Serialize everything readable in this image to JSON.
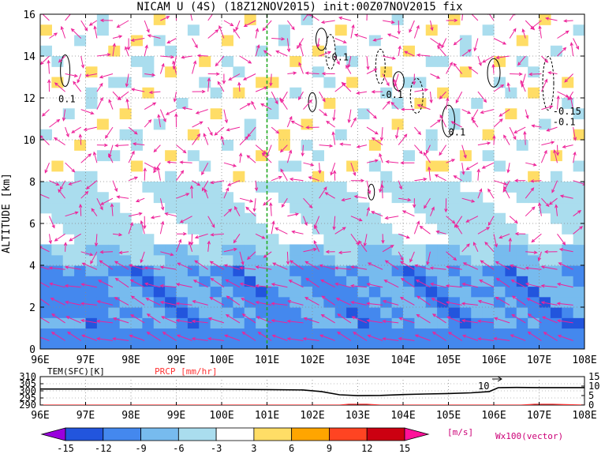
{
  "title": "NICAM U (4S) (18Z12NOV2015) init:00Z07NOV2015 fix",
  "chart_data": [
    {
      "type": "heatmap",
      "ylabel": "ALTITUDE [km]",
      "xticks": [
        "96E",
        "97E",
        "98E",
        "99E",
        "100E",
        "101E",
        "102E",
        "103E",
        "104E",
        "105E",
        "106E",
        "107E",
        "108E"
      ],
      "yticks": [
        "0",
        "2",
        "4",
        "6",
        "8",
        "10",
        "12",
        "14",
        "16"
      ],
      "xlim": [
        96,
        108
      ],
      "ylim": [
        0,
        16
      ],
      "marker_line_lon": 101,
      "contour_labels": [
        {
          "text": "0.1",
          "lon": 96.4,
          "alt": 11.8
        },
        {
          "text": "-0.1",
          "lon": 102.3,
          "alt": 13.8
        },
        {
          "text": "-0.1",
          "lon": 103.5,
          "alt": 12.0
        },
        {
          "text": "0.1",
          "lon": 105.0,
          "alt": 10.2
        },
        {
          "text": "-0.15",
          "lon": 107.3,
          "alt": 11.2
        },
        {
          "text": "-0.1",
          "lon": 107.3,
          "alt": 10.7
        }
      ],
      "shaded_levels": {
        "bounds": [
          -15,
          -12,
          -9,
          -6,
          -3,
          3,
          6,
          9,
          12,
          15
        ],
        "colors": [
          "#9900dd",
          "#2255dd",
          "#4488ee",
          "#77bbee",
          "#aaddee",
          "#ffffff",
          "#ffdd66",
          "#ffa500",
          "#ff4422",
          "#cc0011",
          "#ff1199"
        ]
      },
      "vector_color": "#ee2299",
      "vector_label": "Wx100(vector)",
      "colorbar_unit": "[m/s]",
      "colorbar_ticks": [
        "-15",
        "-12",
        "-9",
        "-6",
        "-3",
        "3",
        "6",
        "9",
        "12",
        "15"
      ]
    },
    {
      "type": "line",
      "labels": {
        "tem": "TEM(SFC)[K]",
        "prcp": "PRCP [mm/hr]"
      },
      "left_ticks": [
        "310",
        "305",
        "300",
        "295",
        "290"
      ],
      "right_ticks": [
        "15",
        "10",
        "5",
        "0"
      ],
      "annotation": "10",
      "xticks": [
        "96E",
        "97E",
        "98E",
        "99E",
        "100E",
        "101E",
        "102E",
        "103E",
        "104E",
        "105E",
        "106E",
        "107E",
        "108E"
      ],
      "ylim": [
        290,
        310
      ],
      "series": [
        {
          "label": "TEM(SFC)[K]",
          "lon": [
            96,
            97,
            98,
            99,
            100,
            101,
            101.8,
            102.2,
            102.6,
            103,
            103.5,
            104,
            104.5,
            105,
            105.5,
            105.9,
            106.1,
            106.5,
            107,
            108
          ],
          "values": [
            301.3,
            301.3,
            301.3,
            301.2,
            301.1,
            300.9,
            300.6,
            299.5,
            297.2,
            296.6,
            296.8,
            297.4,
            297.8,
            298.1,
            298.6,
            299.5,
            302.2,
            302.4,
            302.3,
            302.3
          ]
        },
        {
          "label": "PRCP [mm/hr]",
          "lon": [
            96,
            102.6,
            102.8,
            103.2,
            103.5,
            106.6,
            106.9,
            107.3,
            108
          ],
          "values": [
            0,
            0,
            0.4,
            0.4,
            0,
            0,
            0.4,
            0.4,
            0
          ]
        }
      ]
    }
  ]
}
